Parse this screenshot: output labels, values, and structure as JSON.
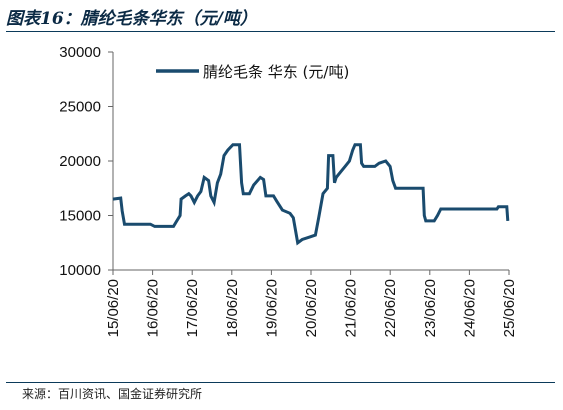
{
  "header": {
    "title": "图表16：腈纶毛条华东（元/吨）"
  },
  "footer": {
    "source": "来源：百川资讯、国金证券研究所"
  },
  "chart_data": {
    "type": "line",
    "title": "图表16：腈纶毛条华东（元/吨）",
    "xlabel": "",
    "ylabel": "",
    "ylim": [
      10000,
      30000
    ],
    "yticks": [
      10000,
      15000,
      20000,
      25000,
      30000
    ],
    "xticks": [
      "15/06/20",
      "16/06/20",
      "17/06/20",
      "18/06/20",
      "19/06/20",
      "20/06/20",
      "21/06/20",
      "22/06/20",
      "23/06/20",
      "24/06/20",
      "25/06/20"
    ],
    "legend_position": "top",
    "grid": false,
    "color": "#1a4b6e",
    "series": [
      {
        "name": "腈纶毛条 华东",
        "points": [
          [
            "2015-06-20",
            16500
          ],
          [
            "2015-09-01",
            16600
          ],
          [
            "2015-09-15",
            15400
          ],
          [
            "2015-10-05",
            14200
          ],
          [
            "2016-06-01",
            14200
          ],
          [
            "2016-07-10",
            14000
          ],
          [
            "2017-01-01",
            14000
          ],
          [
            "2017-02-01",
            14500
          ],
          [
            "2017-03-01",
            15000
          ],
          [
            "2017-03-10",
            16500
          ],
          [
            "2017-04-20",
            16800
          ],
          [
            "2017-05-20",
            17000
          ],
          [
            "2017-06-10",
            16800
          ],
          [
            "2017-07-10",
            16200
          ],
          [
            "2017-08-10",
            16800
          ],
          [
            "2017-09-10",
            17200
          ],
          [
            "2017-10-10",
            18500
          ],
          [
            "2017-11-20",
            18200
          ],
          [
            "2017-12-10",
            16800
          ],
          [
            "2018-01-10",
            16200
          ],
          [
            "2018-02-10",
            18000
          ],
          [
            "2018-03-10",
            18800
          ],
          [
            "2018-04-10",
            20500
          ],
          [
            "2018-05-15",
            21000
          ],
          [
            "2018-07-01",
            21500
          ],
          [
            "2018-09-01",
            21500
          ],
          [
            "2018-09-20",
            18000
          ],
          [
            "2018-10-05",
            17000
          ],
          [
            "2018-12-01",
            17000
          ],
          [
            "2019-01-10",
            17800
          ],
          [
            "2019-03-10",
            18500
          ],
          [
            "2019-04-10",
            18300
          ],
          [
            "2019-05-01",
            16800
          ],
          [
            "2019-07-10",
            16800
          ],
          [
            "2019-08-10",
            16300
          ],
          [
            "2019-10-01",
            15500
          ],
          [
            "2019-12-10",
            15200
          ],
          [
            "2020-01-10",
            14800
          ],
          [
            "2020-02-20",
            12500
          ],
          [
            "2020-04-01",
            12800
          ],
          [
            "2020-06-01",
            13000
          ],
          [
            "2020-08-01",
            13200
          ],
          [
            "2020-09-01",
            14800
          ],
          [
            "2020-10-10",
            17000
          ],
          [
            "2020-11-20",
            17500
          ],
          [
            "2020-12-01",
            20500
          ],
          [
            "2021-01-10",
            20500
          ],
          [
            "2021-01-25",
            18000
          ],
          [
            "2021-02-10",
            18500
          ],
          [
            "2021-03-20",
            19000
          ],
          [
            "2021-05-01",
            19500
          ],
          [
            "2021-06-10",
            20000
          ],
          [
            "2021-07-10",
            21000
          ],
          [
            "2021-08-01",
            21500
          ],
          [
            "2021-09-20",
            21500
          ],
          [
            "2021-10-01",
            19800
          ],
          [
            "2021-10-20",
            19500
          ],
          [
            "2022-02-01",
            19500
          ],
          [
            "2022-03-10",
            19800
          ],
          [
            "2022-05-10",
            20000
          ],
          [
            "2022-06-20",
            19500
          ],
          [
            "2022-07-15",
            18200
          ],
          [
            "2022-08-10",
            17500
          ],
          [
            "2023-03-10",
            17500
          ],
          [
            "2023-04-20",
            17500
          ],
          [
            "2023-05-01",
            15000
          ],
          [
            "2023-05-15",
            14500
          ],
          [
            "2023-08-01",
            14500
          ],
          [
            "2023-09-01",
            15000
          ],
          [
            "2023-10-01",
            15600
          ],
          [
            "2025-03-01",
            15600
          ],
          [
            "2025-03-15",
            15800
          ],
          [
            "2025-06-01",
            15800
          ],
          [
            "2025-06-10",
            14500
          ]
        ]
      }
    ]
  }
}
